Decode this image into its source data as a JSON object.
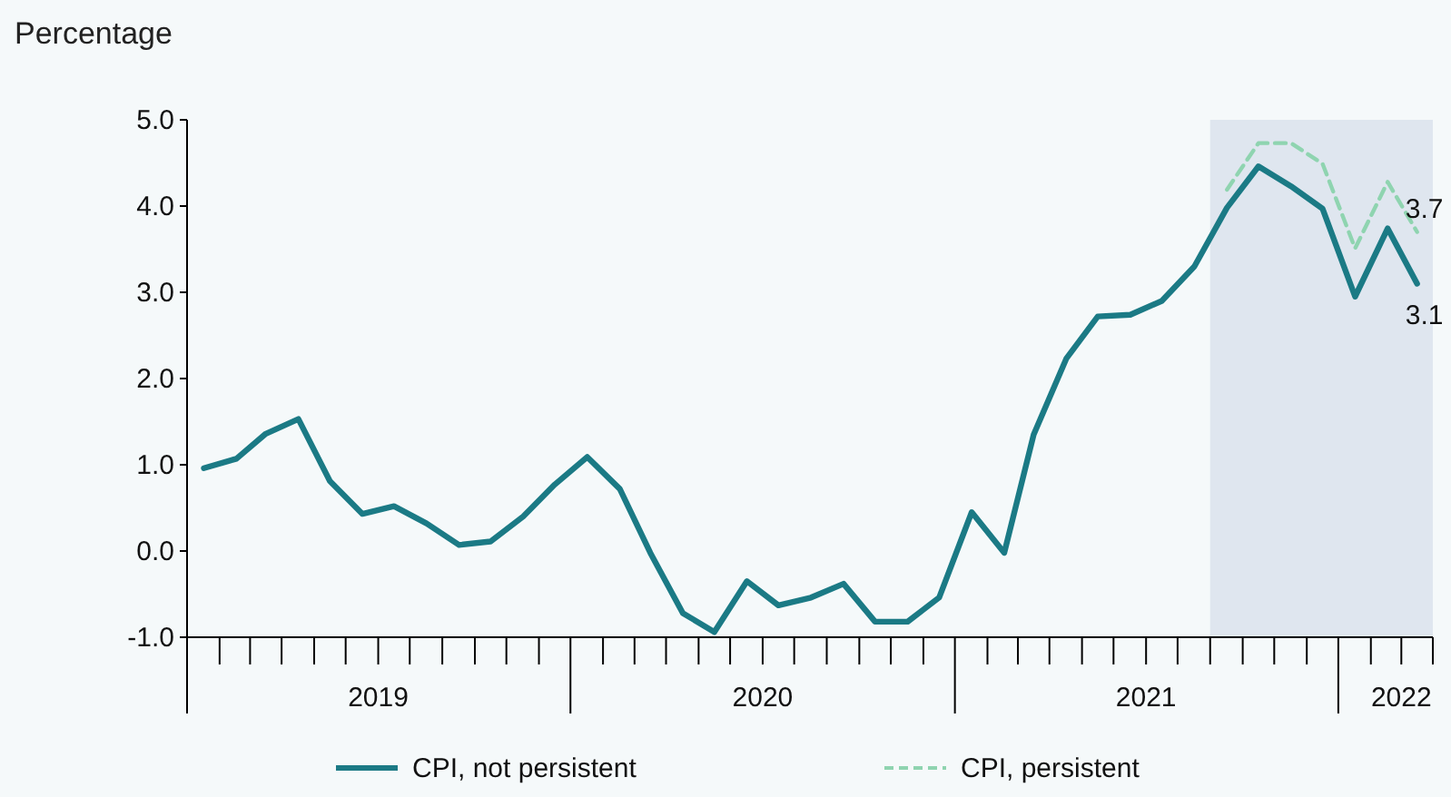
{
  "chart_data": {
    "type": "line",
    "ylabel": "Percentage",
    "x": [
      "2019-01",
      "2019-02",
      "2019-03",
      "2019-04",
      "2019-05",
      "2019-06",
      "2019-07",
      "2019-08",
      "2019-09",
      "2019-10",
      "2019-11",
      "2019-12",
      "2020-01",
      "2020-02",
      "2020-03",
      "2020-04",
      "2020-05",
      "2020-06",
      "2020-07",
      "2020-08",
      "2020-09",
      "2020-10",
      "2020-11",
      "2020-12",
      "2021-01",
      "2021-02",
      "2021-03",
      "2021-04",
      "2021-05",
      "2021-06",
      "2021-07",
      "2021-08",
      "2021-09",
      "2021-10",
      "2021-11",
      "2021-12",
      "2022-01",
      "2022-02",
      "2022-03"
    ],
    "series": [
      {
        "name": "CPI, not persistent",
        "color": "#1b7a85",
        "line_style": "solid",
        "values": [
          0.96,
          1.07,
          1.36,
          1.53,
          0.81,
          0.43,
          0.52,
          0.32,
          0.07,
          0.11,
          0.4,
          0.77,
          1.09,
          0.72,
          -0.02,
          -0.72,
          -0.94,
          -0.35,
          -0.63,
          -0.54,
          -0.38,
          -0.82,
          -0.82,
          -0.54,
          0.45,
          -0.02,
          1.35,
          2.23,
          2.72,
          2.74,
          2.9,
          3.3,
          3.98,
          4.46,
          4.23,
          3.97,
          2.95,
          3.74,
          3.1
        ],
        "value_labels": [
          null,
          null,
          null,
          null,
          null,
          null,
          null,
          null,
          null,
          null,
          null,
          null,
          null,
          null,
          null,
          null,
          null,
          null,
          null,
          null,
          null,
          null,
          null,
          null,
          null,
          null,
          null,
          null,
          null,
          null,
          null,
          null,
          null,
          null,
          null,
          null,
          null,
          null,
          "3.1"
        ]
      },
      {
        "name": "CPI, persistent",
        "color": "#8fd4b0",
        "line_style": "dashed",
        "values": [
          null,
          null,
          null,
          null,
          null,
          null,
          null,
          null,
          null,
          null,
          null,
          null,
          null,
          null,
          null,
          null,
          null,
          null,
          null,
          null,
          null,
          null,
          null,
          null,
          null,
          null,
          null,
          null,
          null,
          null,
          null,
          null,
          4.19,
          4.73,
          4.73,
          4.49,
          3.51,
          4.28,
          3.7
        ],
        "value_labels": [
          null,
          null,
          null,
          null,
          null,
          null,
          null,
          null,
          null,
          null,
          null,
          null,
          null,
          null,
          null,
          null,
          null,
          null,
          null,
          null,
          null,
          null,
          null,
          null,
          null,
          null,
          null,
          null,
          null,
          null,
          null,
          null,
          null,
          null,
          null,
          null,
          null,
          null,
          "3.7"
        ]
      }
    ],
    "xlim": [
      "2018-12-16",
      "2022-03-16"
    ],
    "xticks": [
      {
        "value": "2018-12-16",
        "label": null
      },
      {
        "value": "2019-01-16",
        "label": null
      },
      {
        "value": "2019-02-14",
        "label": null
      },
      {
        "value": "2019-03-16",
        "label": null
      },
      {
        "value": "2019-04-16",
        "label": null
      },
      {
        "value": "2019-05-16",
        "label": null
      },
      {
        "value": "2019-06-16",
        "label": "2019"
      },
      {
        "value": "2019-07-16",
        "label": null
      },
      {
        "value": "2019-08-16",
        "label": null
      },
      {
        "value": "2019-09-16",
        "label": null
      },
      {
        "value": "2019-10-16",
        "label": null
      },
      {
        "value": "2019-11-16",
        "label": null
      },
      {
        "value": "2019-12-16",
        "label": null
      },
      {
        "value": "2020-01-16",
        "label": null
      },
      {
        "value": "2020-02-15",
        "label": null
      },
      {
        "value": "2020-03-16",
        "label": null
      },
      {
        "value": "2020-04-16",
        "label": null
      },
      {
        "value": "2020-05-16",
        "label": null
      },
      {
        "value": "2020-06-16",
        "label": "2020"
      },
      {
        "value": "2020-07-16",
        "label": null
      },
      {
        "value": "2020-08-16",
        "label": null
      },
      {
        "value": "2020-09-16",
        "label": null
      },
      {
        "value": "2020-10-16",
        "label": null
      },
      {
        "value": "2020-11-16",
        "label": null
      },
      {
        "value": "2020-12-16",
        "label": null
      },
      {
        "value": "2021-01-16",
        "label": null
      },
      {
        "value": "2021-02-14",
        "label": null
      },
      {
        "value": "2021-03-16",
        "label": null
      },
      {
        "value": "2021-04-16",
        "label": null
      },
      {
        "value": "2021-05-16",
        "label": null
      },
      {
        "value": "2021-06-16",
        "label": "2021"
      },
      {
        "value": "2021-07-16",
        "label": null
      },
      {
        "value": "2021-08-16",
        "label": null
      },
      {
        "value": "2021-09-16",
        "label": null
      },
      {
        "value": "2021-10-16",
        "label": null
      },
      {
        "value": "2021-11-16",
        "label": null
      },
      {
        "value": "2021-12-16",
        "label": null
      },
      {
        "value": "2022-01-16",
        "label": null
      },
      {
        "value": "2022-02-14",
        "label": "2022"
      },
      {
        "value": "2022-03-16",
        "label": null
      }
    ],
    "ylim": [
      -1,
      5
    ],
    "yticks": [
      {
        "value": -1,
        "label": "-1.0"
      },
      {
        "value": 0,
        "label": "0.0"
      },
      {
        "value": 1,
        "label": "1.0"
      },
      {
        "value": 2,
        "label": "2.0"
      },
      {
        "value": 3,
        "label": "3.0"
      },
      {
        "value": 4,
        "label": "4.0"
      },
      {
        "value": 5,
        "label": "5.0"
      }
    ],
    "bands": [
      {
        "axis": "x",
        "from": "2021-08-16",
        "to": "2022-03-16",
        "color": "#dfe6ef"
      }
    ],
    "legend": "bottom",
    "grid": false
  }
}
